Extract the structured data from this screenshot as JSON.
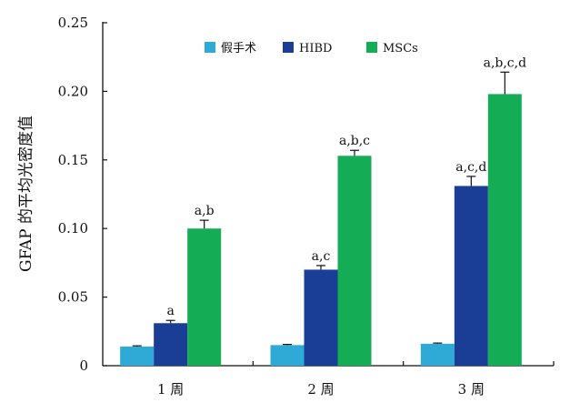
{
  "chart_data": {
    "type": "bar",
    "title": "",
    "xlabel": "",
    "ylabel": "GFAP 的平均光密度值",
    "ylim": [
      0,
      0.25
    ],
    "yticks": [
      "0",
      "0.05",
      "0.10",
      "0.15",
      "0.20",
      "0.25"
    ],
    "categories": [
      "1 周",
      "2 周",
      "3 周"
    ],
    "series": [
      {
        "name": "假手术",
        "color": "#2fa9d6",
        "values": [
          0.014,
          0.015,
          0.016
        ],
        "errors": [
          0.0005,
          0.0005,
          0.0005
        ],
        "labels": [
          "",
          "",
          ""
        ]
      },
      {
        "name": "HIBD",
        "color": "#1a3d95",
        "values": [
          0.031,
          0.07,
          0.131
        ],
        "errors": [
          0.002,
          0.003,
          0.007
        ],
        "labels": [
          "a",
          "a,c",
          "a,c,d"
        ]
      },
      {
        "name": "MSCs",
        "color": "#14ad56",
        "values": [
          0.1,
          0.153,
          0.198
        ],
        "errors": [
          0.006,
          0.004,
          0.016
        ],
        "labels": [
          "a,b",
          "a,b,c",
          "a,b,c,d"
        ]
      }
    ],
    "legend_position": "top",
    "grid": false
  }
}
